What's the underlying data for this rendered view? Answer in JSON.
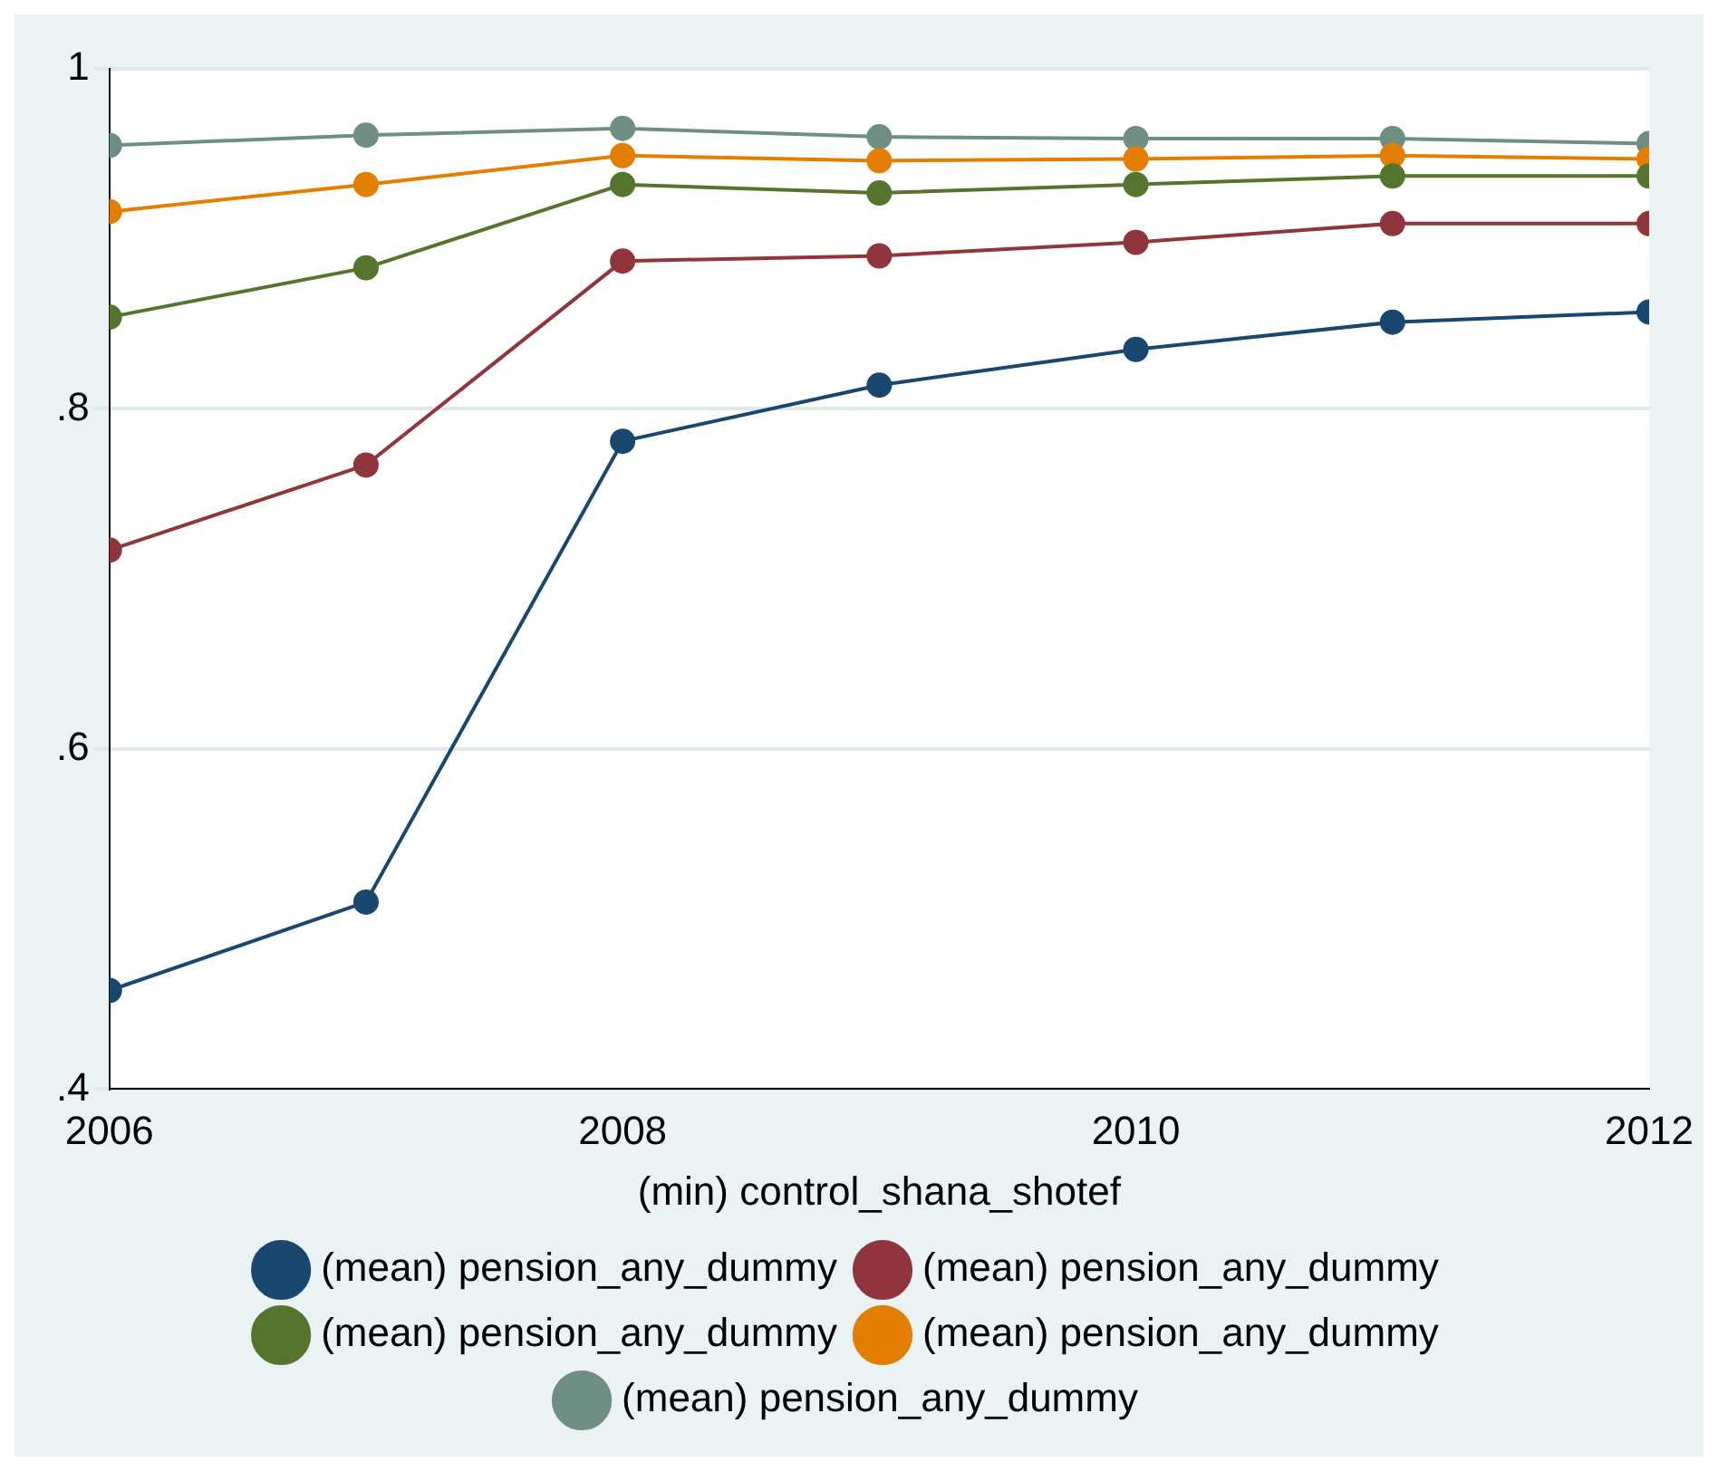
{
  "chart_data": {
    "type": "line",
    "xlabel": "(min) control_shana_shotef",
    "x": [
      2006,
      2007,
      2008,
      2009,
      2010,
      2011,
      2012
    ],
    "xlim": [
      2006,
      2012
    ],
    "xticks": [
      2006,
      2008,
      2010,
      2012
    ],
    "ylim": [
      0.4,
      1
    ],
    "yticks": [
      {
        "value": 0.4,
        "label": ".4"
      },
      {
        "value": 0.6,
        "label": ".6"
      },
      {
        "value": 0.8,
        "label": ".8"
      },
      1
    ],
    "grid": "y",
    "legend": "bottom",
    "marker": "circle",
    "series": [
      {
        "name": "(mean) pension_any_dummy",
        "color": "#1a476f",
        "values": [
          0.458,
          0.51,
          0.781,
          0.814,
          0.835,
          0.851,
          0.857
        ]
      },
      {
        "name": "(mean) pension_any_dummy",
        "color": "#90353b",
        "values": [
          0.717,
          0.767,
          0.887,
          0.89,
          0.898,
          0.909,
          0.909
        ]
      },
      {
        "name": "(mean) pension_any_dummy",
        "color": "#55752f",
        "values": [
          0.854,
          0.883,
          0.932,
          0.927,
          0.932,
          0.937,
          0.937
        ]
      },
      {
        "name": "(mean) pension_any_dummy",
        "color": "#e37e00",
        "values": [
          0.916,
          0.932,
          0.949,
          0.946,
          0.947,
          0.949,
          0.947
        ]
      },
      {
        "name": "(mean) pension_any_dummy",
        "color": "#6e8e84",
        "values": [
          0.955,
          0.961,
          0.965,
          0.96,
          0.959,
          0.959,
          0.956
        ]
      }
    ]
  }
}
